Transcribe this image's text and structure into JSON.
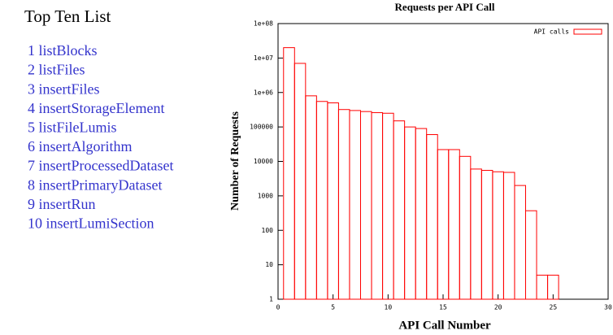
{
  "list": {
    "title": "Top Ten List",
    "items": [
      "1 listBlocks",
      "2 listFiles",
      "3 insertFiles",
      "4 insertStorageElement",
      "5 listFileLumis",
      "6 insertAlgorithm",
      "7 insertProcessedDataset",
      "8 insertPrimaryDataset",
      "9 insertRun",
      "10 insertLumiSection"
    ]
  },
  "chart_data": {
    "type": "bar",
    "title": "Requests per API Call",
    "x_label": "API Call Number",
    "y_label": "Number of Requests",
    "x": [
      1,
      2,
      3,
      4,
      5,
      6,
      7,
      8,
      9,
      10,
      11,
      12,
      13,
      14,
      15,
      16,
      17,
      18,
      19,
      20,
      21,
      22,
      23,
      24,
      25
    ],
    "series": [
      {
        "name": "API calls",
        "color": "#ff0000",
        "values": [
          20000000,
          7000000,
          800000,
          550000,
          500000,
          320000,
          300000,
          280000,
          260000,
          250000,
          150000,
          100000,
          90000,
          60000,
          22000,
          22000,
          14000,
          6000,
          5500,
          5000,
          4800,
          2000,
          370,
          5,
          5
        ]
      }
    ],
    "xlim": [
      0,
      30
    ],
    "xticks": [
      0,
      5,
      10,
      15,
      20,
      25,
      30
    ],
    "ylim": [
      1,
      100000000
    ],
    "log_y": true,
    "yticks": [
      1,
      10,
      100,
      1000,
      10000,
      100000,
      {
        "value": 1000000,
        "label": "1e+06"
      },
      {
        "value": 10000000,
        "label": "1e+07"
      },
      {
        "value": 100000000,
        "label": "1e+08"
      }
    ],
    "legend": "top-right"
  }
}
